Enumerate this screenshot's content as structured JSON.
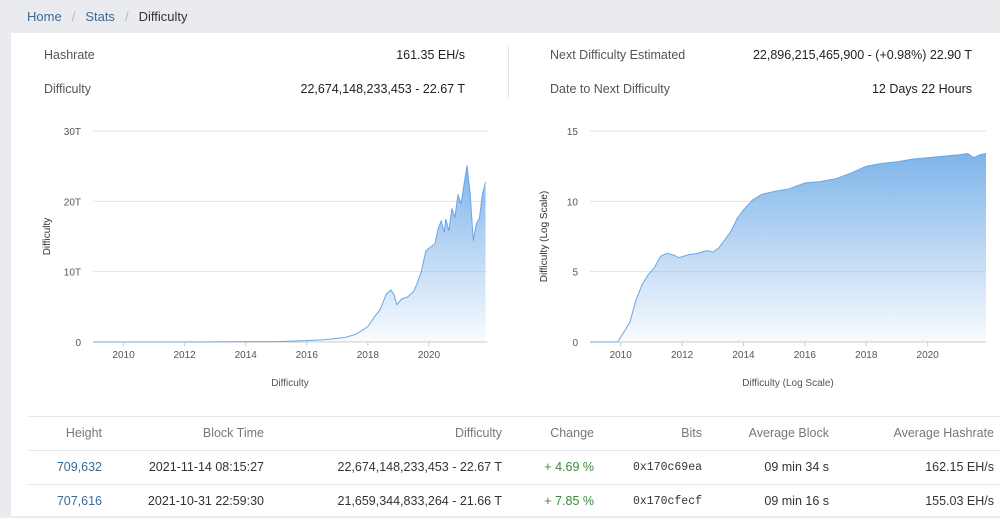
{
  "breadcrumb": {
    "home": "Home",
    "stats": "Stats",
    "current": "Difficulty"
  },
  "stats": {
    "hashrate_label": "Hashrate",
    "hashrate_value": "161.35 EH/s",
    "difficulty_label": "Difficulty",
    "difficulty_value": "22,674,148,233,453 - 22.67 T",
    "next_label": "Next Difficulty Estimated",
    "next_value": "22,896,215,465,900 - (+0.98%) 22.90 T",
    "date_label": "Date to Next Difficulty",
    "date_value": "12 Days 22 Hours"
  },
  "colors": {
    "accent": "#7fb4ea",
    "link": "#3a6a9a",
    "positive": "#3b8a3b"
  },
  "chart_data": [
    {
      "type": "area",
      "title": "",
      "xlabel": "Difficulty",
      "ylabel": "Difficulty",
      "xlim": [
        2009,
        2021.9
      ],
      "ylim": [
        0,
        30
      ],
      "y_unit": "T",
      "xticks": [
        "2010",
        "2012",
        "2014",
        "2016",
        "2018",
        "2020"
      ],
      "yticks": [
        "0",
        "10T",
        "20T",
        "30T"
      ],
      "grid": true,
      "series": [
        {
          "x": [
            2009.0,
            2011.0,
            2013.0,
            2014.0,
            2015.0,
            2016.0,
            2016.5,
            2017.0,
            2017.3,
            2017.6,
            2017.8,
            2018.0,
            2018.2,
            2018.4,
            2018.6,
            2018.75,
            2018.85,
            2018.95,
            2019.1,
            2019.3,
            2019.5,
            2019.6,
            2019.75,
            2019.9,
            2020.05,
            2020.2,
            2020.3,
            2020.4,
            2020.5,
            2020.55,
            2020.65,
            2020.75,
            2020.85,
            2020.95,
            2021.05,
            2021.15,
            2021.25,
            2021.35,
            2021.45,
            2021.55,
            2021.65,
            2021.75,
            2021.85
          ],
          "y": [
            0,
            0,
            0.02,
            0.05,
            0.06,
            0.2,
            0.3,
            0.5,
            0.7,
            1.1,
            1.6,
            2.2,
            3.5,
            4.6,
            6.8,
            7.4,
            6.8,
            5.3,
            6.1,
            6.4,
            7.2,
            8.2,
            10.0,
            13.0,
            13.5,
            14.0,
            16.1,
            17.2,
            15.6,
            17.5,
            15.8,
            19.0,
            17.7,
            21.0,
            19.6,
            22.5,
            25.1,
            21.0,
            14.4,
            16.8,
            17.6,
            21.0,
            22.7
          ]
        }
      ]
    },
    {
      "type": "area",
      "title": "",
      "xlabel": "Difficulty (Log Scale)",
      "ylabel": "Difficulty (Log Scale)",
      "xlim": [
        2009,
        2021.9
      ],
      "ylim": [
        0,
        15
      ],
      "xticks": [
        "2010",
        "2012",
        "2014",
        "2016",
        "2018",
        "2020"
      ],
      "yticks": [
        "0",
        "5",
        "10",
        "15"
      ],
      "grid": true,
      "series": [
        {
          "x": [
            2009.0,
            2009.9,
            2010.1,
            2010.3,
            2010.5,
            2010.7,
            2010.9,
            2011.1,
            2011.3,
            2011.5,
            2011.7,
            2011.9,
            2012.2,
            2012.5,
            2012.8,
            2013.0,
            2013.2,
            2013.4,
            2013.6,
            2013.8,
            2014.0,
            2014.3,
            2014.6,
            2015.0,
            2015.5,
            2016.0,
            2016.5,
            2017.0,
            2017.5,
            2018.0,
            2018.5,
            2019.0,
            2019.5,
            2020.0,
            2020.5,
            2021.0,
            2021.3,
            2021.5,
            2021.7,
            2021.9
          ],
          "y": [
            0,
            0,
            0.7,
            1.4,
            3.0,
            4.1,
            4.8,
            5.3,
            6.1,
            6.3,
            6.2,
            6.0,
            6.2,
            6.3,
            6.5,
            6.4,
            6.7,
            7.3,
            7.9,
            8.8,
            9.4,
            10.1,
            10.5,
            10.7,
            10.9,
            11.3,
            11.4,
            11.6,
            12.0,
            12.5,
            12.7,
            12.8,
            13.0,
            13.1,
            13.2,
            13.3,
            13.4,
            13.1,
            13.3,
            13.4
          ]
        }
      ]
    }
  ],
  "table": {
    "headers": [
      "Height",
      "Block Time",
      "Difficulty",
      "Change",
      "Bits",
      "Average Block",
      "Average Hashrate"
    ],
    "rows": [
      [
        "709,632",
        "2021-11-14 08:15:27",
        "22,674,148,233,453 - 22.67 T",
        "+ 4.69 %",
        "0x170c69ea",
        "09 min 34 s",
        "162.15 EH/s"
      ],
      [
        "707,616",
        "2021-10-31 22:59:30",
        "21,659,344,833,264 - 21.66 T",
        "+ 7.85 %",
        "0x170cfecf",
        "09 min 16 s",
        "155.03 EH/s"
      ]
    ]
  }
}
